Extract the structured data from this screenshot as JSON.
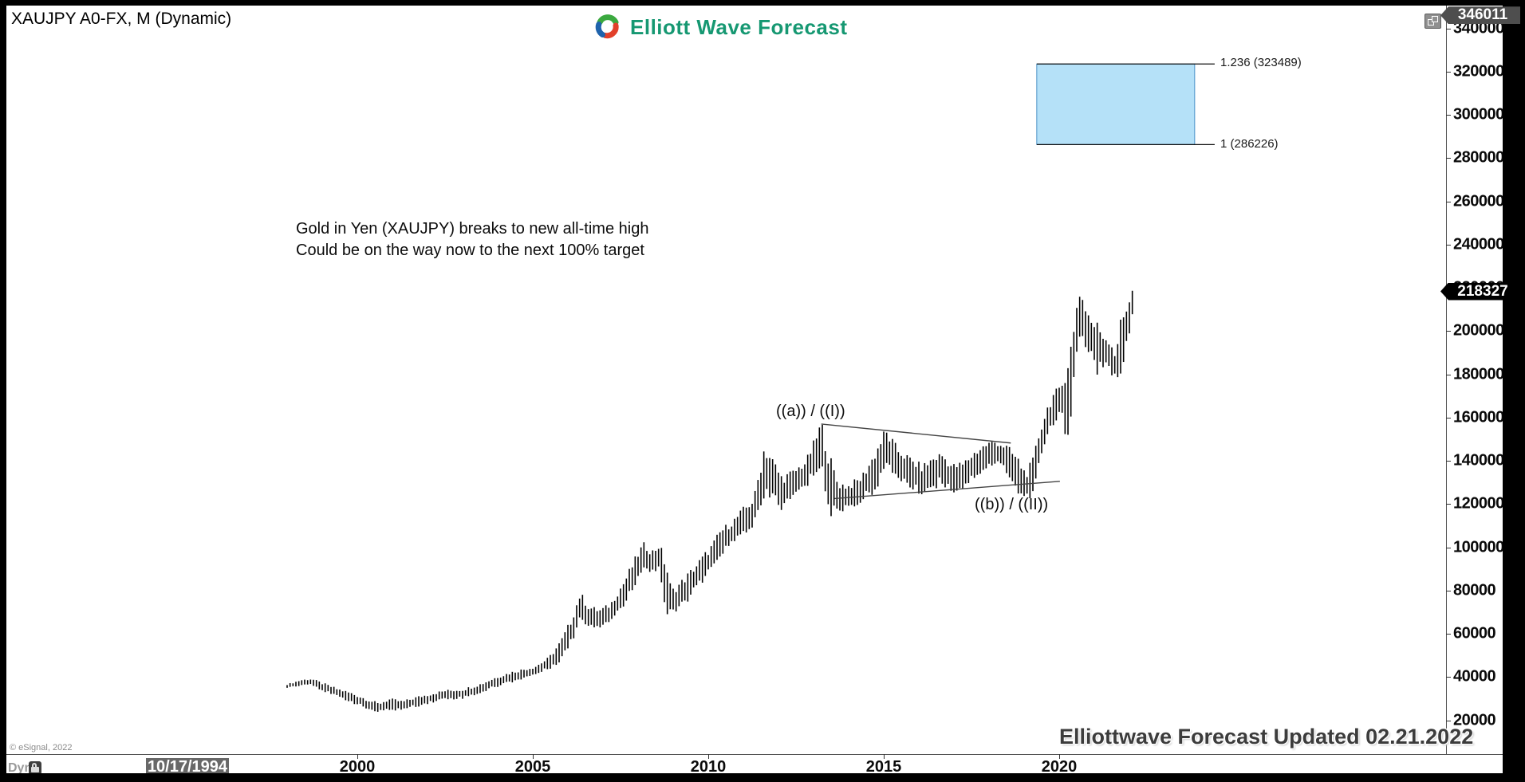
{
  "window": {
    "title": "XAUJPY A0-FX, M (Dynamic)"
  },
  "brand": {
    "name": "Elliott Wave Forecast",
    "text_color": "#169872",
    "swirl_colors": [
      "#3ba93f",
      "#e2402a",
      "#1f63ac"
    ]
  },
  "annotations": {
    "note_line1": "Gold in Yen (XAUJPY) breaks to new all-time high",
    "note_line2": "Could be on the way now to the next 100% target",
    "wave_top": "((a)) / ((I))",
    "wave_bottom": "((b)) / ((II))"
  },
  "footer": {
    "copyright": "© eSignal, 2022",
    "mode": "Dyn",
    "watermark": "Elliottwave Forecast Updated 02.21.2022"
  },
  "colors": {
    "bar": "#000000",
    "trendline": "#444444",
    "axis": "#555555",
    "tag_high_bg": "#4e4e4e",
    "tag_last_bg": "#000000",
    "fib_box_fill": "#b5e1f8",
    "fib_box_border": "#4a90c8"
  },
  "chart_data": {
    "type": "bar",
    "subtype": "monthly-high-low-bars",
    "title": "XAUJPY A0-FX, M (Dynamic)",
    "symbol": "XAUJPY A0-FX",
    "timeframe": "M",
    "first_bar_date": "10/17/1994",
    "start_year": 1998.0,
    "bar_count": 290,
    "last_price": 218327,
    "axis_high_marker": 346011,
    "price_ticks": [
      340000,
      320000,
      300000,
      280000,
      260000,
      240000,
      220000,
      200000,
      180000,
      160000,
      140000,
      120000,
      100000,
      80000,
      60000,
      40000,
      20000
    ],
    "x_tick_years": [
      2000,
      2005,
      2010,
      2015,
      2020
    ],
    "ylim": [
      14000,
      349000
    ],
    "series_anchors": [
      [
        1998.0,
        36500,
        35200
      ],
      [
        1998.4,
        38500,
        36300
      ],
      [
        1998.7,
        39000,
        36800
      ],
      [
        1999.0,
        37000,
        34000
      ],
      [
        1999.4,
        34500,
        31200
      ],
      [
        1999.8,
        32500,
        29000
      ],
      [
        2000.2,
        30000,
        26000
      ],
      [
        2000.6,
        27500,
        23800
      ],
      [
        2000.9,
        29500,
        25000
      ],
      [
        2001.3,
        28500,
        25200
      ],
      [
        2001.7,
        30500,
        26800
      ],
      [
        2002.1,
        32000,
        28500
      ],
      [
        2002.5,
        33500,
        30000
      ],
      [
        2003.0,
        34000,
        30500
      ],
      [
        2003.5,
        36500,
        32800
      ],
      [
        2004.0,
        40000,
        36000
      ],
      [
        2004.5,
        42500,
        38500
      ],
      [
        2005.05,
        44500,
        41200
      ],
      [
        2005.45,
        48500,
        44000
      ],
      [
        2005.8,
        56000,
        48500
      ],
      [
        2006.1,
        66000,
        56500
      ],
      [
        2006.35,
        78000,
        67500
      ],
      [
        2006.6,
        72000,
        64200
      ],
      [
        2006.9,
        70500,
        63800
      ],
      [
        2007.2,
        73000,
        66500
      ],
      [
        2007.6,
        83500,
        73500
      ],
      [
        2008.0,
        96500,
        86000
      ],
      [
        2008.15,
        101000,
        92500
      ],
      [
        2008.4,
        97500,
        88500
      ],
      [
        2008.6,
        100500,
        91500
      ],
      [
        2008.8,
        91500,
        69500
      ],
      [
        2008.95,
        79000,
        68800
      ],
      [
        2009.3,
        84500,
        74500
      ],
      [
        2009.7,
        92000,
        82000
      ],
      [
        2010.1,
        100000,
        90000
      ],
      [
        2010.35,
        107000,
        97500
      ],
      [
        2010.7,
        111500,
        102000
      ],
      [
        2011.0,
        117000,
        107000
      ],
      [
        2011.3,
        121500,
        111000
      ],
      [
        2011.6,
        145500,
        122500
      ],
      [
        2011.85,
        139000,
        124500
      ],
      [
        2012.1,
        131500,
        118500
      ],
      [
        2012.45,
        134500,
        124500
      ],
      [
        2012.8,
        139500,
        128500
      ],
      [
        2013.05,
        149000,
        136000
      ],
      [
        2013.22,
        156500,
        139000
      ],
      [
        2013.45,
        140000,
        115800
      ],
      [
        2013.7,
        129000,
        117500
      ],
      [
        2014.0,
        128000,
        119000
      ],
      [
        2014.35,
        131500,
        121500
      ],
      [
        2014.7,
        141000,
        127000
      ],
      [
        2015.05,
        153000,
        137000
      ],
      [
        2015.4,
        144500,
        133500
      ],
      [
        2015.8,
        139500,
        127500
      ],
      [
        2016.1,
        136500,
        125800
      ],
      [
        2016.4,
        140500,
        128500
      ],
      [
        2016.65,
        142500,
        131000
      ],
      [
        2016.95,
        137000,
        126500
      ],
      [
        2017.25,
        138000,
        128000
      ],
      [
        2017.6,
        143500,
        133500
      ],
      [
        2017.95,
        147500,
        137500
      ],
      [
        2018.2,
        148500,
        139500
      ],
      [
        2018.5,
        146000,
        136000
      ],
      [
        2018.8,
        140500,
        126500
      ],
      [
        2019.05,
        133500,
        122800
      ],
      [
        2019.25,
        139000,
        125000
      ],
      [
        2019.45,
        153500,
        140000
      ],
      [
        2019.65,
        163500,
        151500
      ],
      [
        2019.85,
        170500,
        157500
      ],
      [
        2020.05,
        172500,
        162000
      ],
      [
        2020.25,
        186000,
        152000
      ],
      [
        2020.4,
        196000,
        176000
      ],
      [
        2020.55,
        219200,
        198300
      ],
      [
        2020.75,
        210500,
        194000
      ],
      [
        2020.95,
        202500,
        188500
      ],
      [
        2021.1,
        201500,
        182000
      ],
      [
        2021.3,
        196500,
        184000
      ],
      [
        2021.45,
        195500,
        181500
      ],
      [
        2021.6,
        188500,
        178500
      ],
      [
        2021.75,
        202500,
        183000
      ],
      [
        2021.9,
        209000,
        193500
      ],
      [
        2022.08,
        219300,
        205500
      ]
    ],
    "trendlines": [
      {
        "name": "triangle-upper",
        "from": [
          2013.22,
          157000
        ],
        "to": [
          2018.62,
          148200
        ]
      },
      {
        "name": "triangle-lower",
        "from": [
          2013.6,
          122500
        ],
        "to": [
          2020.02,
          130500
        ]
      }
    ],
    "fib_extension": {
      "levels": [
        {
          "ratio": "1.236",
          "price": 323489,
          "label": "1.236 (323489)"
        },
        {
          "ratio": "1",
          "price": 286226,
          "label": "1 (286226)"
        }
      ],
      "box_x_years": [
        2019.36,
        2023.86
      ],
      "line_end_year": 2024.43
    }
  }
}
